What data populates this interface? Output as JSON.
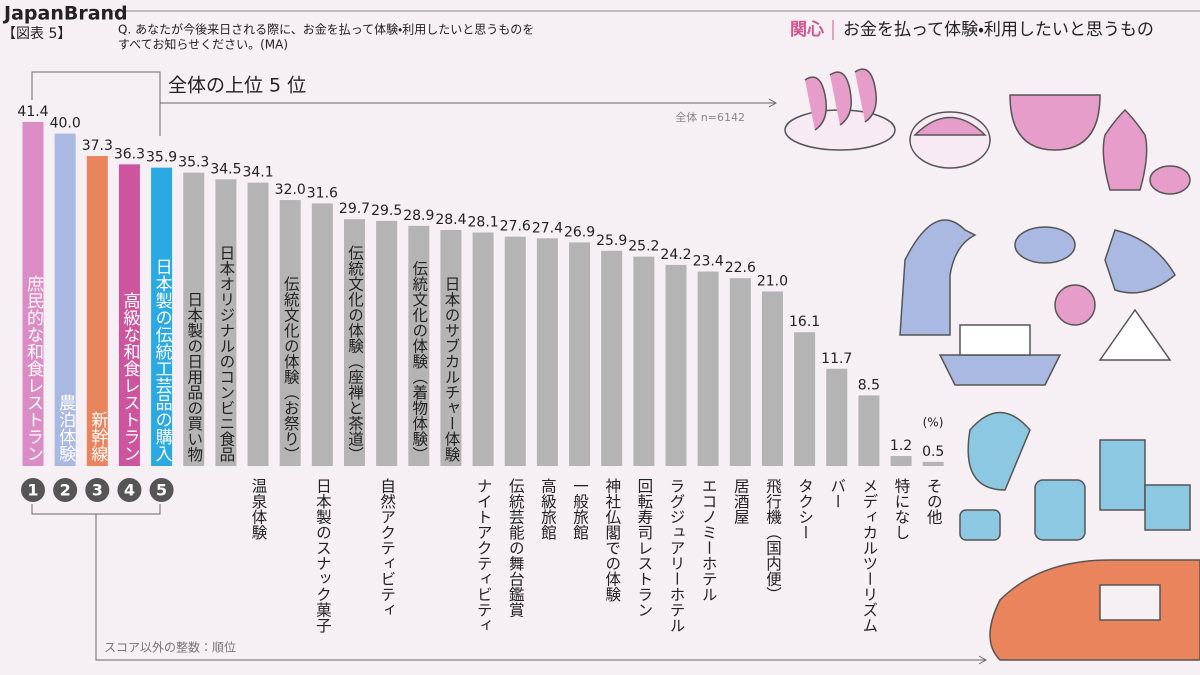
{
  "chart_data": {
    "type": "bar",
    "brand": "JapanBrand",
    "figure_label": "【図表 5】",
    "question": [
      "Q. あなたが今後来日される際に、お金を払って体験・利用したいと思うものを",
      "すべてお知らせください。(MA)"
    ],
    "title_tag": "関心",
    "title": "お金を払って体験・利用したいと思うもの",
    "top_note": "全体の上位 5 位",
    "sample_note": "全体 n=6142",
    "unit_label": "(%)",
    "rank_note": "スコア以外の整数：順位",
    "ranks": [
      1,
      2,
      3,
      4,
      5
    ],
    "categories": [
      "庶民的な和食レストラン",
      "農泊体験",
      "新幹線",
      "高級な和食レストラン",
      "日本製の伝統工芸品の購入",
      "日本製の日用品の買い物",
      "日本オリジナルのコンビニ食品",
      "温泉体験",
      "伝統文化の体験（お祭り）",
      "日本製のスナック菓子",
      "伝統文化の体験（座禅と茶道）",
      "自然アクティビティ",
      "伝統文化の体験（着物体験）",
      "日本のサブカルチャー体験",
      "ナイトアクティビティ",
      "伝統芸能の舞台鑑賞",
      "高級旅館",
      "一般旅館",
      "神社仏閣での体験",
      "回転寿司レストラン",
      "ラグジュアリーホテル",
      "エコノミーホテル",
      "居酒屋",
      "飛行機（国内便）",
      "タクシー",
      "バー",
      "メディカルツーリズム",
      "特になし",
      "その他"
    ],
    "values": [
      41.4,
      40.0,
      37.3,
      36.3,
      35.9,
      35.3,
      34.5,
      34.1,
      32.0,
      31.6,
      29.7,
      29.5,
      28.9,
      28.4,
      28.1,
      27.6,
      27.4,
      26.9,
      25.9,
      25.2,
      24.2,
      23.4,
      22.6,
      21.0,
      16.1,
      11.7,
      8.5,
      1.2,
      0.5
    ],
    "value_labels": [
      "41.4",
      "40.0",
      "37.3",
      "36.3",
      "35.9",
      "35.3",
      "34.5",
      "34.1",
      "32.0",
      "31.6",
      "29.7",
      "29.5",
      "28.9",
      "28.4",
      "28.1",
      "27.6",
      "27.4",
      "26.9",
      "25.9",
      "25.2",
      "24.2",
      "23.4",
      "22.6",
      "21.0",
      "16.1",
      "11.7",
      "8.5",
      "1.2",
      "0.5"
    ],
    "colors": [
      "#dc8cc4",
      "#a9b9e2",
      "#e9845c",
      "#cc559d",
      "#2aa9e2",
      "#b4b4b4",
      "#b4b4b4",
      "#b4b4b4",
      "#b4b4b4",
      "#b4b4b4",
      "#b4b4b4",
      "#b4b4b4",
      "#b4b4b4",
      "#b4b4b4",
      "#b4b4b4",
      "#b4b4b4",
      "#b4b4b4",
      "#b4b4b4",
      "#b4b4b4",
      "#b4b4b4",
      "#b4b4b4",
      "#b4b4b4",
      "#b4b4b4",
      "#b4b4b4",
      "#b4b4b4",
      "#b4b4b4",
      "#b4b4b4",
      "#b4b4b4",
      "#b4b4b4"
    ]
  }
}
